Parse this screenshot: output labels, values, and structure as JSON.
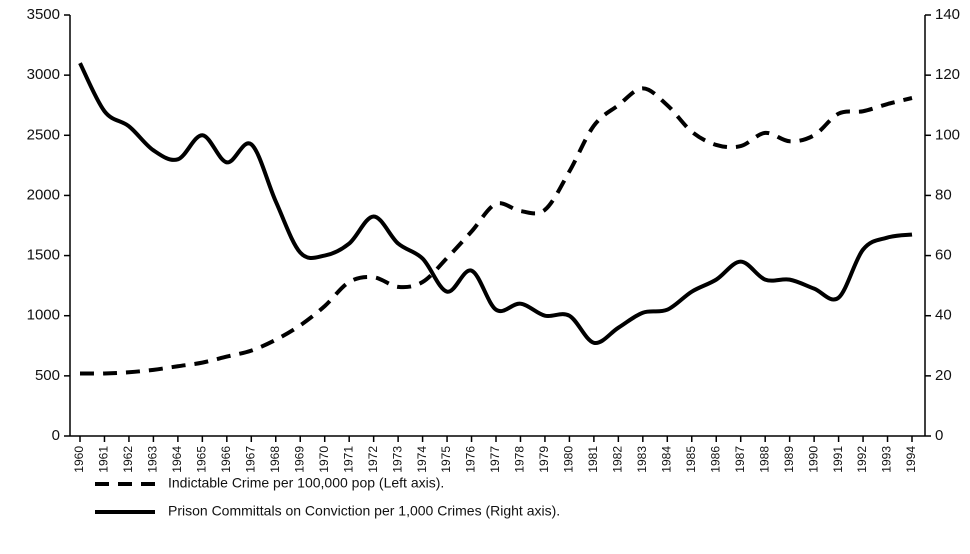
{
  "chart_data": {
    "type": "line",
    "categories": [
      "1960",
      "1961",
      "1962",
      "1963",
      "1964",
      "1965",
      "1966",
      "1967",
      "1968",
      "1969",
      "1970",
      "1971",
      "1972",
      "1973",
      "1974",
      "1975",
      "1976",
      "1977",
      "1978",
      "1979",
      "1980",
      "1981",
      "1982",
      "1983",
      "1984",
      "1985",
      "1986",
      "1987",
      "1988",
      "1989",
      "1990",
      "1991",
      "1992",
      "1993",
      "1994"
    ],
    "series": [
      {
        "name": "Indictable Crime per 100,000 pop (Left axis).",
        "color": "#000000",
        "style": "dashed",
        "values": [
          520,
          520,
          530,
          550,
          580,
          610,
          660,
          710,
          800,
          920,
          1080,
          1280,
          1320,
          1240,
          1280,
          1480,
          1700,
          1930,
          1870,
          1880,
          2200,
          2580,
          2750,
          2890,
          2750,
          2530,
          2420,
          2410,
          2520,
          2450,
          2500,
          2680,
          2700,
          2760,
          2810
        ]
      },
      {
        "name": "Prison Committals on Conviction per 1,000 Crimes (Right axis).",
        "color": "#000000",
        "style": "solid",
        "axis": "y2",
        "values": [
          124,
          108,
          103,
          95,
          92,
          100,
          91,
          97,
          78,
          61,
          60,
          64,
          73,
          64,
          59,
          48,
          55,
          42,
          44,
          40,
          40,
          31,
          36,
          41,
          42,
          48,
          52,
          58,
          52,
          52,
          49,
          46,
          62,
          66,
          67
        ]
      }
    ],
    "ylim": [
      0,
      3500
    ],
    "yticks": [
      0,
      500,
      1000,
      1500,
      2000,
      2500,
      3000,
      3500
    ],
    "y2lim": [
      0,
      140
    ],
    "y2ticks": [
      0,
      20,
      40,
      60,
      80,
      100,
      120,
      140
    ],
    "grid": false
  }
}
